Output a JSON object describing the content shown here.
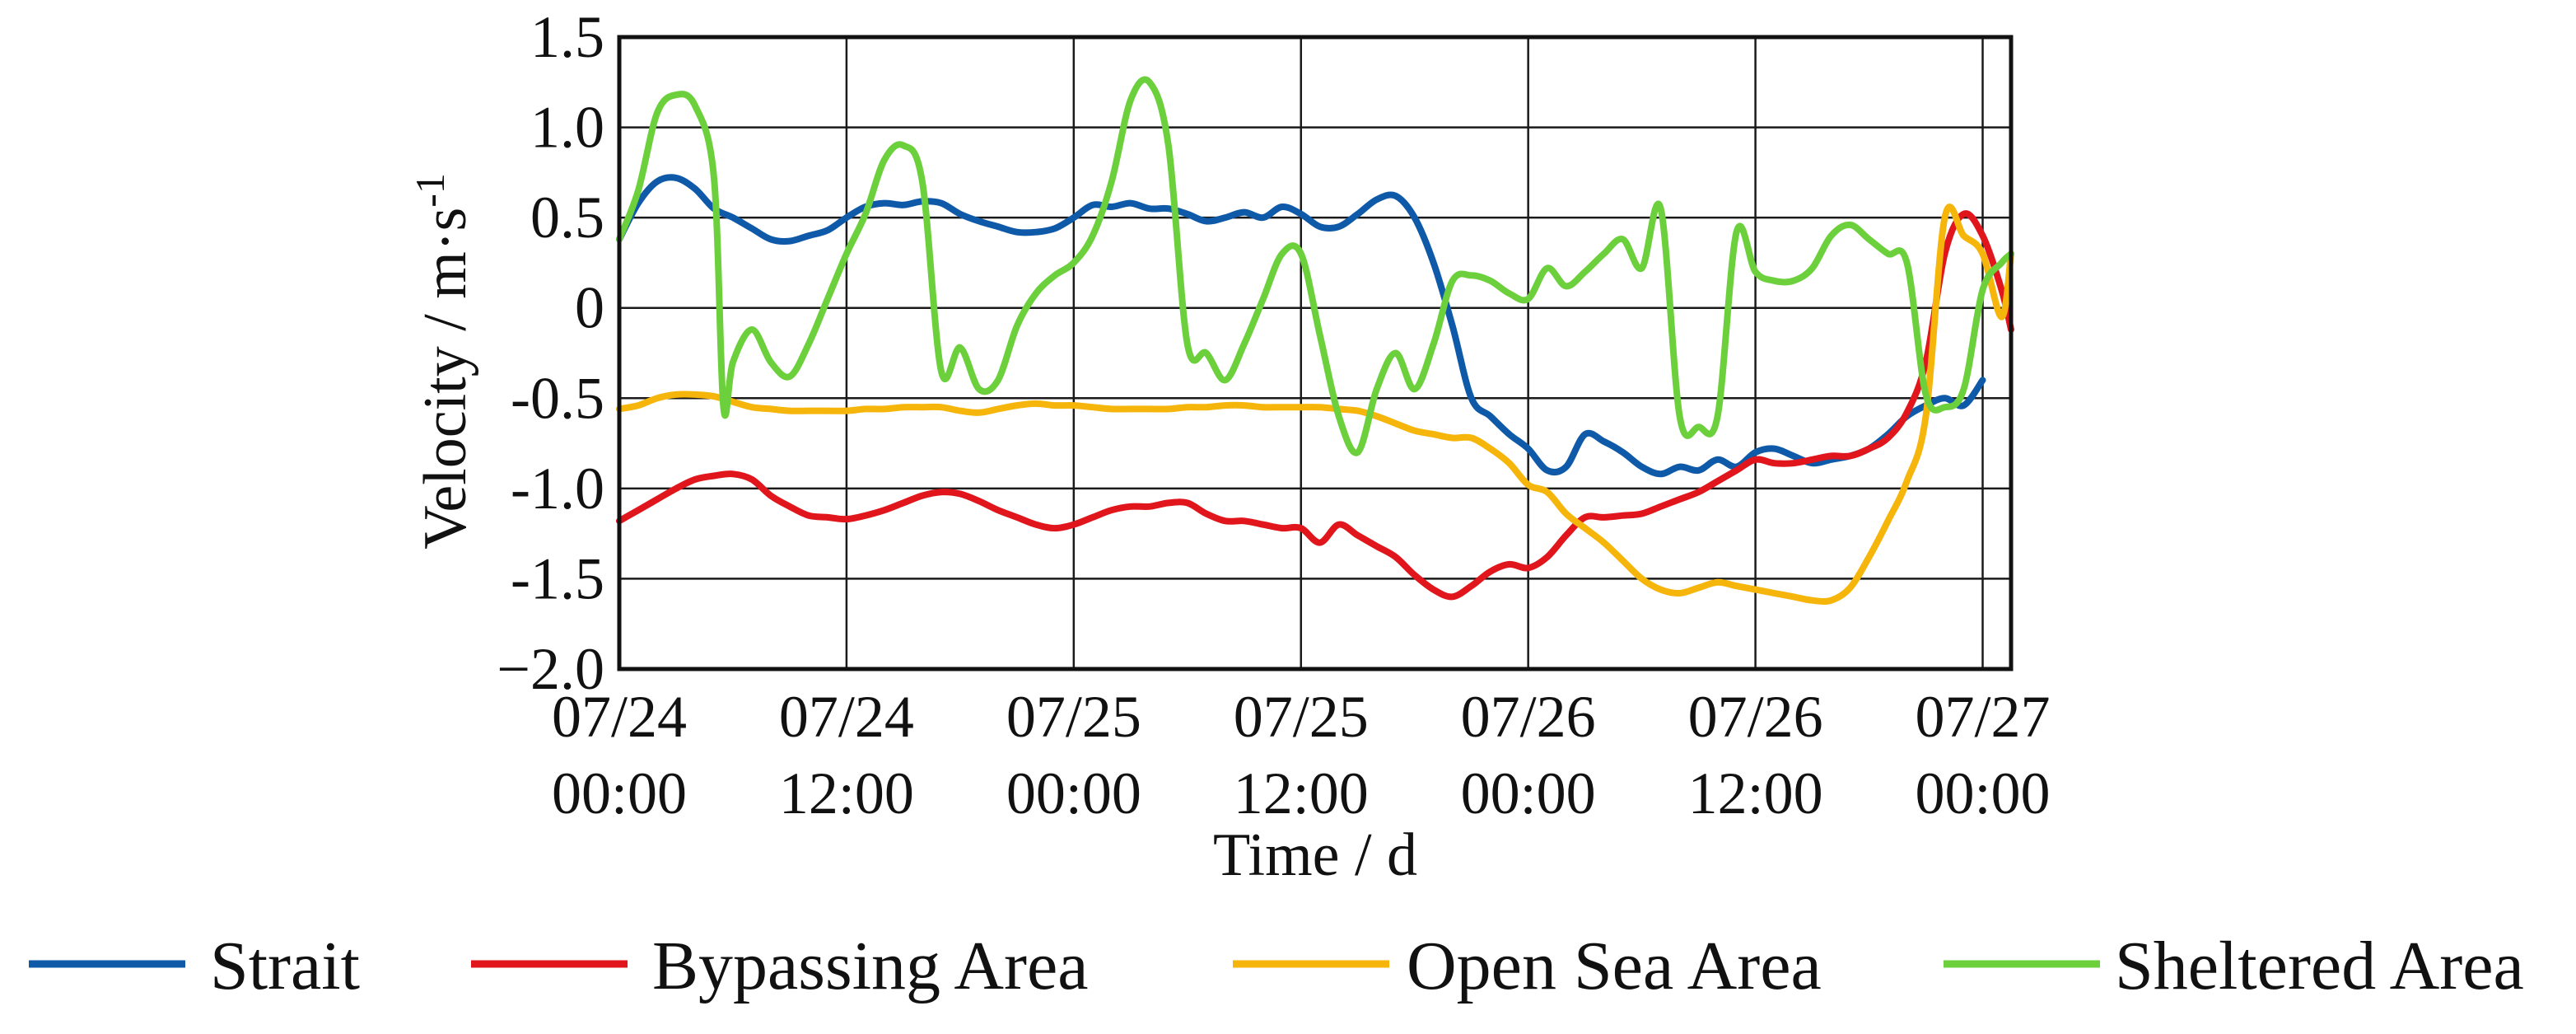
{
  "chart_data": {
    "type": "line",
    "xlabel": "Time / d",
    "ylabel": "Velocity  / m·s-1",
    "ylabel_parts": {
      "main": "Velocity  / m·s",
      "sup": "-1"
    },
    "ylim": [
      -2.0,
      1.5
    ],
    "xlim": [
      "2023-07-24 00:00",
      "2023-07-27 00:00"
    ],
    "x_unit": "hours from 07/24 00:00",
    "y_ticks": [
      {
        "value": 1.5,
        "label": "1.5"
      },
      {
        "value": 1.0,
        "label": "1.0"
      },
      {
        "value": 0.5,
        "label": "0.5"
      },
      {
        "value": 0,
        "label": "0"
      },
      {
        "value": -0.5,
        "label": "-0.5"
      },
      {
        "value": -1.0,
        "label": "-1.0"
      },
      {
        "value": -1.5,
        "label": "-1.5"
      },
      {
        "value": -2.0,
        "label": "−2.0"
      }
    ],
    "x_ticks": [
      {
        "value": 0,
        "line1": "07/24",
        "line2": "00:00"
      },
      {
        "value": 12,
        "line1": "07/24",
        "line2": "12:00"
      },
      {
        "value": 24,
        "line1": "07/25",
        "line2": "00:00"
      },
      {
        "value": 36,
        "line1": "07/25",
        "line2": "12:00"
      },
      {
        "value": 48,
        "line1": "07/26",
        "line2": "00:00"
      },
      {
        "value": 60,
        "line1": "07/26",
        "line2": "12:00"
      },
      {
        "value": 72,
        "line1": "07/27",
        "line2": "00:00"
      }
    ],
    "grid": true,
    "legend_position": "bottom",
    "series": [
      {
        "name": "Strait",
        "color": "#0f5aa8",
        "points": [
          [
            0,
            0.38
          ],
          [
            1,
            0.58
          ],
          [
            2,
            0.7
          ],
          [
            3,
            0.72
          ],
          [
            4,
            0.66
          ],
          [
            5,
            0.55
          ],
          [
            6,
            0.5
          ],
          [
            7,
            0.44
          ],
          [
            8,
            0.38
          ],
          [
            9,
            0.37
          ],
          [
            10,
            0.4
          ],
          [
            11,
            0.43
          ],
          [
            12,
            0.5
          ],
          [
            13,
            0.56
          ],
          [
            14,
            0.58
          ],
          [
            15,
            0.57
          ],
          [
            16,
            0.59
          ],
          [
            17,
            0.58
          ],
          [
            18,
            0.52
          ],
          [
            19,
            0.48
          ],
          [
            20,
            0.45
          ],
          [
            21,
            0.42
          ],
          [
            22,
            0.42
          ],
          [
            23,
            0.44
          ],
          [
            24,
            0.5
          ],
          [
            25,
            0.57
          ],
          [
            26,
            0.56
          ],
          [
            27,
            0.58
          ],
          [
            28,
            0.55
          ],
          [
            29,
            0.55
          ],
          [
            30,
            0.52
          ],
          [
            31,
            0.48
          ],
          [
            32,
            0.5
          ],
          [
            33,
            0.53
          ],
          [
            34,
            0.5
          ],
          [
            35,
            0.56
          ],
          [
            36,
            0.52
          ],
          [
            37,
            0.45
          ],
          [
            38,
            0.45
          ],
          [
            39,
            0.52
          ],
          [
            40,
            0.6
          ],
          [
            41,
            0.62
          ],
          [
            42,
            0.5
          ],
          [
            43,
            0.25
          ],
          [
            44,
            -0.1
          ],
          [
            45,
            -0.5
          ],
          [
            46,
            -0.6
          ],
          [
            47,
            -0.7
          ],
          [
            48,
            -0.78
          ],
          [
            49,
            -0.9
          ],
          [
            50,
            -0.88
          ],
          [
            51,
            -0.7
          ],
          [
            52,
            -0.74
          ],
          [
            53,
            -0.8
          ],
          [
            54,
            -0.88
          ],
          [
            55,
            -0.92
          ],
          [
            56,
            -0.88
          ],
          [
            57,
            -0.9
          ],
          [
            58,
            -0.84
          ],
          [
            59,
            -0.88
          ],
          [
            60,
            -0.8
          ],
          [
            61,
            -0.78
          ],
          [
            62,
            -0.82
          ],
          [
            63,
            -0.86
          ],
          [
            64,
            -0.84
          ],
          [
            65,
            -0.82
          ],
          [
            66,
            -0.78
          ],
          [
            67,
            -0.7
          ],
          [
            68,
            -0.6
          ],
          [
            69,
            -0.54
          ],
          [
            70,
            -0.5
          ],
          [
            71,
            -0.54
          ],
          [
            72,
            -0.4
          ]
        ]
      },
      {
        "name": "Bypassing Area",
        "color": "#e0161c",
        "points": [
          [
            0,
            -1.18
          ],
          [
            1,
            -1.12
          ],
          [
            2,
            -1.06
          ],
          [
            3,
            -1.0
          ],
          [
            4,
            -0.95
          ],
          [
            5,
            -0.93
          ],
          [
            6,
            -0.92
          ],
          [
            7,
            -0.95
          ],
          [
            8,
            -1.04
          ],
          [
            9,
            -1.1
          ],
          [
            10,
            -1.15
          ],
          [
            11,
            -1.16
          ],
          [
            12,
            -1.17
          ],
          [
            13,
            -1.15
          ],
          [
            14,
            -1.12
          ],
          [
            15,
            -1.08
          ],
          [
            16,
            -1.04
          ],
          [
            17,
            -1.02
          ],
          [
            18,
            -1.03
          ],
          [
            19,
            -1.07
          ],
          [
            20,
            -1.12
          ],
          [
            21,
            -1.16
          ],
          [
            22,
            -1.2
          ],
          [
            23,
            -1.22
          ],
          [
            24,
            -1.2
          ],
          [
            25,
            -1.16
          ],
          [
            26,
            -1.12
          ],
          [
            27,
            -1.1
          ],
          [
            28,
            -1.1
          ],
          [
            29,
            -1.08
          ],
          [
            30,
            -1.08
          ],
          [
            31,
            -1.14
          ],
          [
            32,
            -1.18
          ],
          [
            33,
            -1.18
          ],
          [
            34,
            -1.2
          ],
          [
            35,
            -1.22
          ],
          [
            36,
            -1.22
          ],
          [
            37,
            -1.3
          ],
          [
            38,
            -1.2
          ],
          [
            39,
            -1.26
          ],
          [
            40,
            -1.32
          ],
          [
            41,
            -1.38
          ],
          [
            42,
            -1.48
          ],
          [
            43,
            -1.56
          ],
          [
            44,
            -1.6
          ],
          [
            45,
            -1.54
          ],
          [
            46,
            -1.46
          ],
          [
            47,
            -1.42
          ],
          [
            48,
            -1.44
          ],
          [
            49,
            -1.38
          ],
          [
            50,
            -1.26
          ],
          [
            51,
            -1.16
          ],
          [
            52,
            -1.16
          ],
          [
            53,
            -1.15
          ],
          [
            54,
            -1.14
          ],
          [
            55,
            -1.1
          ],
          [
            56,
            -1.06
          ],
          [
            57,
            -1.02
          ],
          [
            58,
            -0.96
          ],
          [
            59,
            -0.9
          ],
          [
            60,
            -0.84
          ],
          [
            61,
            -0.86
          ],
          [
            62,
            -0.86
          ],
          [
            63,
            -0.84
          ],
          [
            64,
            -0.82
          ],
          [
            65,
            -0.82
          ],
          [
            66,
            -0.78
          ],
          [
            67,
            -0.72
          ],
          [
            68,
            -0.58
          ],
          [
            69,
            -0.3
          ],
          [
            70,
            0.3
          ],
          [
            71,
            0.52
          ],
          [
            72,
            0.4
          ],
          [
            73,
            0.1
          ],
          [
            73.5,
            -0.12
          ]
        ]
      },
      {
        "name": "Open Sea Area",
        "color": "#f5b50a",
        "points": [
          [
            0,
            -0.56
          ],
          [
            1,
            -0.54
          ],
          [
            2,
            -0.5
          ],
          [
            3,
            -0.48
          ],
          [
            4,
            -0.48
          ],
          [
            5,
            -0.49
          ],
          [
            6,
            -0.52
          ],
          [
            7,
            -0.55
          ],
          [
            8,
            -0.56
          ],
          [
            9,
            -0.57
          ],
          [
            10,
            -0.57
          ],
          [
            11,
            -0.57
          ],
          [
            12,
            -0.57
          ],
          [
            13,
            -0.56
          ],
          [
            14,
            -0.56
          ],
          [
            15,
            -0.55
          ],
          [
            16,
            -0.55
          ],
          [
            17,
            -0.55
          ],
          [
            18,
            -0.57
          ],
          [
            19,
            -0.58
          ],
          [
            20,
            -0.56
          ],
          [
            21,
            -0.54
          ],
          [
            22,
            -0.53
          ],
          [
            23,
            -0.54
          ],
          [
            24,
            -0.54
          ],
          [
            25,
            -0.55
          ],
          [
            26,
            -0.56
          ],
          [
            27,
            -0.56
          ],
          [
            28,
            -0.56
          ],
          [
            29,
            -0.56
          ],
          [
            30,
            -0.55
          ],
          [
            31,
            -0.55
          ],
          [
            32,
            -0.54
          ],
          [
            33,
            -0.54
          ],
          [
            34,
            -0.55
          ],
          [
            35,
            -0.55
          ],
          [
            36,
            -0.55
          ],
          [
            37,
            -0.55
          ],
          [
            38,
            -0.56
          ],
          [
            39,
            -0.57
          ],
          [
            40,
            -0.6
          ],
          [
            41,
            -0.64
          ],
          [
            42,
            -0.68
          ],
          [
            43,
            -0.7
          ],
          [
            44,
            -0.72
          ],
          [
            45,
            -0.72
          ],
          [
            46,
            -0.78
          ],
          [
            47,
            -0.86
          ],
          [
            48,
            -0.98
          ],
          [
            49,
            -1.02
          ],
          [
            50,
            -1.14
          ],
          [
            51,
            -1.22
          ],
          [
            52,
            -1.3
          ],
          [
            53,
            -1.4
          ],
          [
            54,
            -1.5
          ],
          [
            55,
            -1.56
          ],
          [
            56,
            -1.58
          ],
          [
            57,
            -1.55
          ],
          [
            58,
            -1.52
          ],
          [
            59,
            -1.54
          ],
          [
            60,
            -1.56
          ],
          [
            61,
            -1.58
          ],
          [
            62,
            -1.6
          ],
          [
            63,
            -1.62
          ],
          [
            64,
            -1.62
          ],
          [
            65,
            -1.55
          ],
          [
            66,
            -1.38
          ],
          [
            67,
            -1.18
          ],
          [
            68,
            -0.96
          ],
          [
            69,
            -0.6
          ],
          [
            70,
            0.5
          ],
          [
            71,
            0.4
          ],
          [
            72,
            0.3
          ],
          [
            73,
            -0.05
          ],
          [
            73.5,
            0.3
          ]
        ]
      },
      {
        "name": "Sheltered Area",
        "color": "#6cd03c",
        "points": [
          [
            0,
            0.38
          ],
          [
            1,
            0.65
          ],
          [
            2,
            1.08
          ],
          [
            3,
            1.18
          ],
          [
            4,
            1.12
          ],
          [
            5,
            0.72
          ],
          [
            5.5,
            -0.55
          ],
          [
            6,
            -0.3
          ],
          [
            7,
            -0.12
          ],
          [
            8,
            -0.3
          ],
          [
            9,
            -0.38
          ],
          [
            10,
            -0.2
          ],
          [
            11,
            0.05
          ],
          [
            12,
            0.3
          ],
          [
            13,
            0.52
          ],
          [
            14,
            0.82
          ],
          [
            15,
            0.9
          ],
          [
            16,
            0.7
          ],
          [
            17,
            -0.35
          ],
          [
            18,
            -0.22
          ],
          [
            19,
            -0.45
          ],
          [
            20,
            -0.4
          ],
          [
            21,
            -0.1
          ],
          [
            22,
            0.08
          ],
          [
            23,
            0.18
          ],
          [
            24,
            0.25
          ],
          [
            25,
            0.4
          ],
          [
            26,
            0.7
          ],
          [
            27,
            1.15
          ],
          [
            28,
            1.25
          ],
          [
            29,
            0.9
          ],
          [
            30,
            -0.2
          ],
          [
            31,
            -0.25
          ],
          [
            32,
            -0.4
          ],
          [
            33,
            -0.2
          ],
          [
            34,
            0.05
          ],
          [
            35,
            0.3
          ],
          [
            36,
            0.3
          ],
          [
            37,
            -0.15
          ],
          [
            38,
            -0.6
          ],
          [
            39,
            -0.8
          ],
          [
            40,
            -0.45
          ],
          [
            41,
            -0.25
          ],
          [
            42,
            -0.45
          ],
          [
            43,
            -0.2
          ],
          [
            44,
            0.15
          ],
          [
            45,
            0.18
          ],
          [
            46,
            0.15
          ],
          [
            47,
            0.08
          ],
          [
            48,
            0.05
          ],
          [
            49,
            0.22
          ],
          [
            50,
            0.12
          ],
          [
            51,
            0.2
          ],
          [
            52,
            0.3
          ],
          [
            53,
            0.38
          ],
          [
            54,
            0.22
          ],
          [
            55,
            0.55
          ],
          [
            56,
            -0.6
          ],
          [
            57,
            -0.66
          ],
          [
            58,
            -0.6
          ],
          [
            59,
            0.42
          ],
          [
            60,
            0.2
          ],
          [
            61,
            0.15
          ],
          [
            62,
            0.15
          ],
          [
            63,
            0.22
          ],
          [
            64,
            0.4
          ],
          [
            65,
            0.46
          ],
          [
            66,
            0.38
          ],
          [
            67,
            0.3
          ],
          [
            68,
            0.25
          ],
          [
            69,
            -0.48
          ],
          [
            70,
            -0.55
          ],
          [
            71,
            -0.45
          ],
          [
            72,
            0.1
          ],
          [
            73,
            0.25
          ],
          [
            73.5,
            0.3
          ]
        ]
      }
    ]
  }
}
